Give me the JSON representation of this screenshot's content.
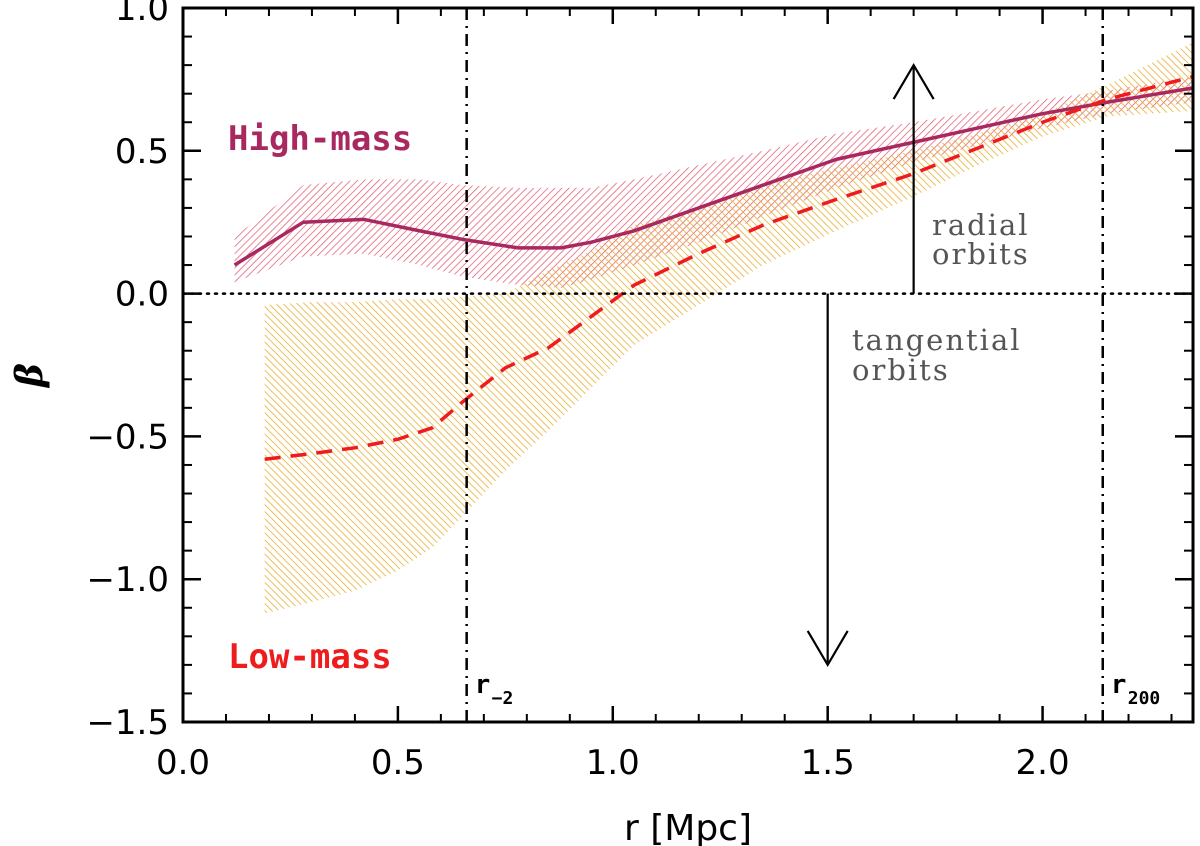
{
  "chart_data": {
    "type": "line",
    "title": "",
    "xlabel": "r [Mpc]",
    "ylabel": "β",
    "xlim": [
      0.0,
      2.35
    ],
    "ylim": [
      -1.5,
      1.0
    ],
    "x_ticks": [
      "0.0",
      "0.5",
      "1.0",
      "1.5",
      "2.0"
    ],
    "y_ticks": [
      "1.0",
      "0.5",
      "0.0",
      "-0.5",
      "-1.0",
      "-1.5"
    ],
    "x_tick_values": [
      0.0,
      0.5,
      1.0,
      1.5,
      2.0
    ],
    "y_tick_values": [
      1.0,
      0.5,
      0.0,
      -0.5,
      -1.0,
      -1.5
    ],
    "grid": false,
    "series": [
      {
        "name": "High-mass",
        "color": "#a8285f",
        "band_color": "#e0506a",
        "style": "solid",
        "x": [
          0.12,
          0.28,
          0.42,
          0.55,
          0.65,
          0.78,
          0.88,
          0.95,
          1.05,
          1.2,
          1.35,
          1.52,
          1.7,
          1.85,
          2.0,
          2.15,
          2.35
        ],
        "y": [
          0.1,
          0.25,
          0.26,
          0.22,
          0.19,
          0.16,
          0.16,
          0.18,
          0.22,
          0.3,
          0.38,
          0.47,
          0.53,
          0.58,
          0.63,
          0.67,
          0.72
        ],
        "band_upper": [
          0.2,
          0.38,
          0.4,
          0.4,
          0.38,
          0.37,
          0.37,
          0.37,
          0.4,
          0.45,
          0.5,
          0.56,
          0.6,
          0.64,
          0.68,
          0.71,
          0.76
        ],
        "band_lower": [
          0.04,
          0.13,
          0.14,
          0.1,
          0.06,
          0.03,
          0.02,
          0.05,
          0.1,
          0.18,
          0.27,
          0.37,
          0.46,
          0.52,
          0.58,
          0.63,
          0.67
        ]
      },
      {
        "name": "Low-mass",
        "color": "#ee1c1c",
        "band_color": "#e8b030",
        "style": "dashed",
        "x": [
          0.19,
          0.3,
          0.4,
          0.5,
          0.58,
          0.65,
          0.75,
          0.85,
          0.95,
          1.05,
          1.2,
          1.35,
          1.52,
          1.7,
          1.85,
          2.0,
          2.15,
          2.35
        ],
        "y": [
          -0.58,
          -0.56,
          -0.54,
          -0.51,
          -0.47,
          -0.38,
          -0.26,
          -0.19,
          -0.08,
          0.03,
          0.14,
          0.24,
          0.33,
          0.42,
          0.51,
          0.6,
          0.68,
          0.76
        ],
        "band_upper": [
          -0.04,
          -0.03,
          -0.03,
          -0.02,
          -0.02,
          -0.01,
          0.0,
          0.08,
          0.15,
          0.24,
          0.3,
          0.38,
          0.44,
          0.5,
          0.56,
          0.63,
          0.73,
          0.88
        ],
        "band_lower": [
          -1.12,
          -1.08,
          -1.04,
          -0.97,
          -0.89,
          -0.78,
          -0.62,
          -0.48,
          -0.33,
          -0.18,
          -0.04,
          0.1,
          0.22,
          0.34,
          0.45,
          0.55,
          0.62,
          0.64
        ]
      }
    ],
    "reference_lines": {
      "horizontal_zero": 0.0,
      "r_minus2": 0.66,
      "r_200": 2.14
    },
    "annotations": {
      "radial": [
        "radial",
        "orbits"
      ],
      "tangential": [
        "tangential",
        "orbits"
      ],
      "r_minus2_label": "r",
      "r_minus2_sub": "−2",
      "r200_label": "r",
      "r200_sub": "200",
      "up_arrow_x": 1.7,
      "up_arrow_y": [
        0.0,
        0.8
      ],
      "down_arrow_x": 1.5,
      "down_arrow_y": [
        0.0,
        -1.3
      ]
    },
    "legend_placement": "left (High-mass upper-left, Low-mass lower-left)"
  }
}
